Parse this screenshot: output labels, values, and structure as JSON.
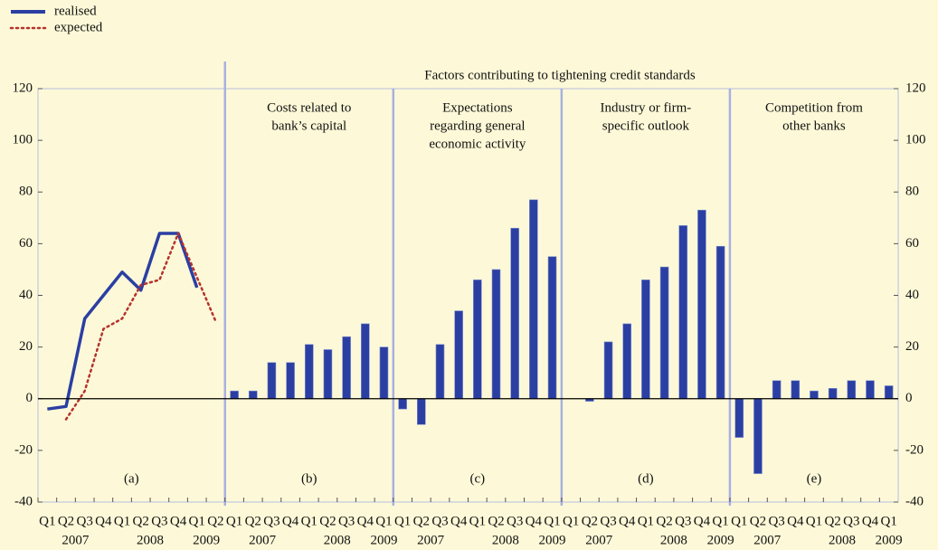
{
  "chart_data": {
    "type": "panels",
    "title": "Factors contributing to tightening credit standards",
    "ylim": [
      -40,
      120
    ],
    "yticks": [
      -40,
      -20,
      0,
      20,
      40,
      60,
      80,
      100,
      120
    ],
    "years": [
      "2007",
      "2008",
      "2009"
    ],
    "panels": [
      {
        "type": "line",
        "label": "(a)",
        "categories": [
          "Q1",
          "Q2",
          "Q3",
          "Q4",
          "Q1",
          "Q2",
          "Q3",
          "Q4",
          "Q1",
          "Q2"
        ],
        "series": [
          {
            "name": "realised",
            "color": "#2b3fa3",
            "style": "solid",
            "values": [
              -4,
              -3,
              31,
              40,
              49,
              42,
              64,
              64,
              43,
              null
            ]
          },
          {
            "name": "expected",
            "color": "#b5322e",
            "style": "dotted",
            "values": [
              null,
              -8,
              3,
              27,
              31,
              44,
              46,
              64,
              47,
              30
            ]
          }
        ]
      },
      {
        "type": "bar",
        "label": "(b)",
        "title": [
          "Costs related to",
          "bank’s capital"
        ],
        "color": "#2b3fa3",
        "categories": [
          "Q1",
          "Q2",
          "Q3",
          "Q4",
          "Q1",
          "Q2",
          "Q3",
          "Q4",
          "Q1"
        ],
        "values": [
          3,
          3,
          14,
          14,
          21,
          19,
          24,
          29,
          20
        ]
      },
      {
        "type": "bar",
        "label": "(c)",
        "title": [
          "Expectations",
          "regarding general",
          "economic activity"
        ],
        "color": "#2b3fa3",
        "categories": [
          "Q1",
          "Q2",
          "Q3",
          "Q4",
          "Q1",
          "Q2",
          "Q3",
          "Q4",
          "Q1"
        ],
        "values": [
          -4,
          -10,
          21,
          34,
          46,
          50,
          66,
          77,
          55
        ]
      },
      {
        "type": "bar",
        "label": "(d)",
        "title": [
          "Industry or firm-",
          "specific outlook"
        ],
        "color": "#2b3fa3",
        "categories": [
          "Q1",
          "Q2",
          "Q3",
          "Q4",
          "Q1",
          "Q2",
          "Q3",
          "Q4",
          "Q1"
        ],
        "values": [
          0,
          -1,
          22,
          29,
          46,
          51,
          67,
          73,
          59
        ]
      },
      {
        "type": "bar",
        "label": "(e)",
        "title": [
          "Competition from",
          "other banks"
        ],
        "color": "#2b3fa3",
        "categories": [
          "Q1",
          "Q2",
          "Q3",
          "Q4",
          "Q1",
          "Q2",
          "Q3",
          "Q4",
          "Q1"
        ],
        "values": [
          -15,
          -29,
          7,
          7,
          3,
          4,
          7,
          7,
          5
        ]
      }
    ]
  }
}
